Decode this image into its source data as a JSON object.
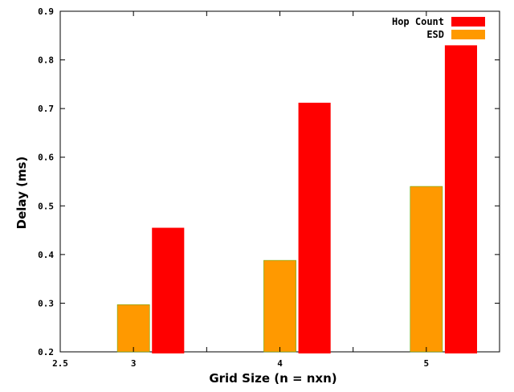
{
  "chart_data": {
    "type": "bar",
    "title": "",
    "xlabel": "Grid Size (n = nxn)",
    "ylabel": "Delay (ms)",
    "xlim": [
      2.5,
      5.5
    ],
    "ylim": [
      0.2,
      0.9
    ],
    "x_ticks": [
      "2.5",
      "3",
      "4",
      "5"
    ],
    "y_ticks": [
      "0.2",
      "0.3",
      "0.4",
      "0.5",
      "0.6",
      "0.7",
      "0.8",
      "0.9"
    ],
    "categories": [
      3,
      4,
      5
    ],
    "series": [
      {
        "name": "Hop Count",
        "color": "#ff0000",
        "values": [
          0.455,
          0.712,
          0.83
        ]
      },
      {
        "name": "ESD",
        "color": "#ff9900",
        "values": [
          0.297,
          0.388,
          0.54
        ]
      }
    ],
    "legend_position": "top-right",
    "grid": false
  }
}
